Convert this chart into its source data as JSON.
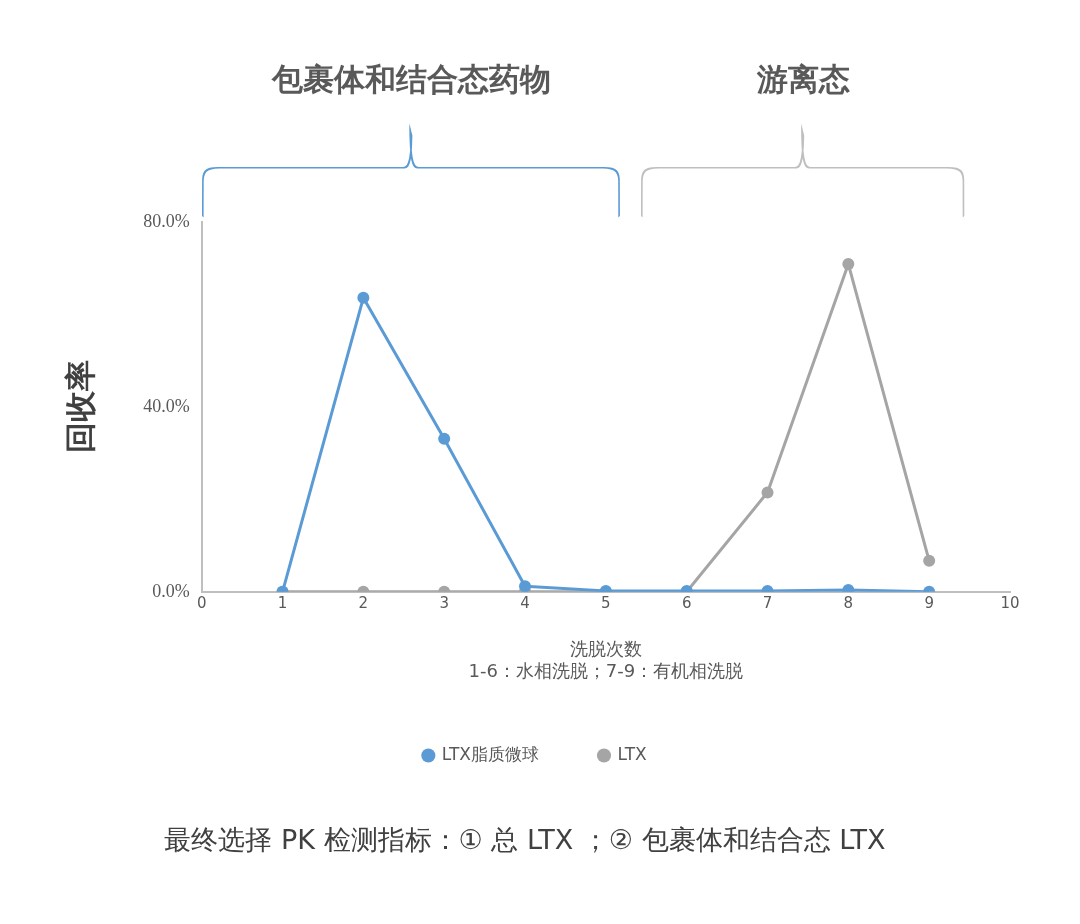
{
  "chart_data": {
    "type": "line",
    "ylabel": "回收率",
    "xlabel": "洗脱次数\n1-6：水相洗脱；7-9：有机相洗脱",
    "annotations": [
      "包裹体和结合态药物",
      "游离态",
      "最终选择 PK 检测指标：① 总 LTX ；② 包裹体和结合态 LTX"
    ],
    "x": [
      1,
      2,
      3,
      4,
      5,
      6,
      7,
      8,
      9
    ],
    "series": [
      {
        "name": "LTX脂质微球",
        "color": "#5b9bd5",
        "values": [
          0,
          63.6,
          33.1,
          1.2,
          0.2,
          0.2,
          0.2,
          0.4,
          0
        ]
      },
      {
        "name": "LTX",
        "color": "#a5a5a5",
        "values": [
          0,
          0,
          0,
          0,
          0,
          0,
          21.5,
          70.9,
          6.7
        ]
      }
    ],
    "xlim": [
      0,
      10
    ],
    "xticks": [
      0,
      1,
      2,
      3,
      4,
      5,
      6,
      7,
      8,
      9,
      10
    ],
    "ylim": [
      0,
      80
    ],
    "yticks": [
      {
        "value": 0,
        "label": "0.0%"
      },
      {
        "value": 40,
        "label": "40.0%"
      },
      {
        "value": 80,
        "label": "80.0%"
      }
    ],
    "legend": "bottom",
    "marker": "circle",
    "line_style": "solid"
  }
}
